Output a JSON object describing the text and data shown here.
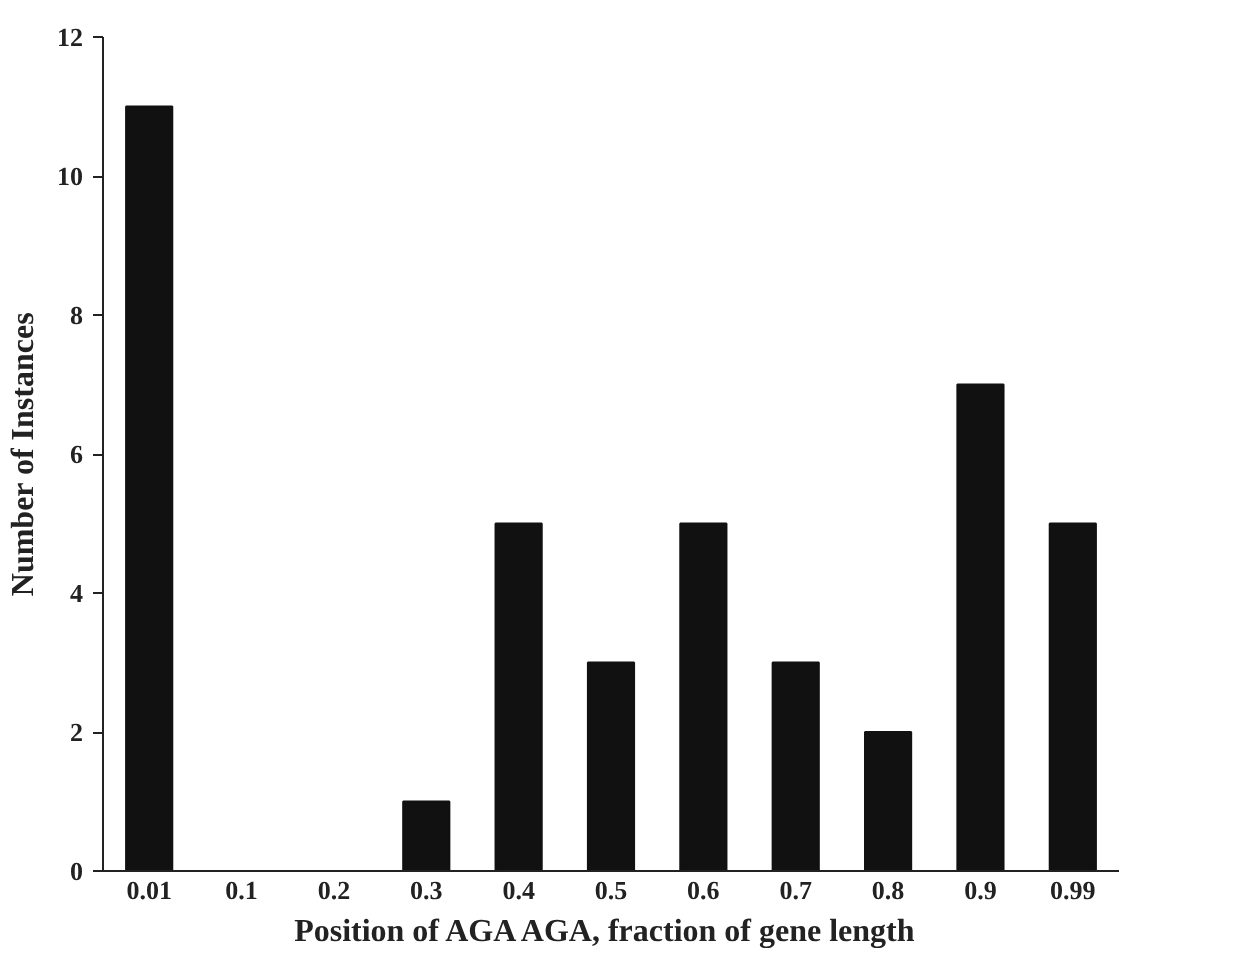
{
  "chart_data": {
    "type": "bar",
    "xlabel": "Position of AGA  AGA, fraction of gene length",
    "ylabel": "Number of Instances",
    "categories": [
      "0.01",
      "0.1",
      "0.2",
      "0.3",
      "0.4",
      "0.5",
      "0.6",
      "0.7",
      "0.8",
      "0.9",
      "0.99"
    ],
    "values": [
      11,
      0,
      0,
      1,
      5,
      3,
      5,
      3,
      2,
      7,
      5
    ],
    "color": "#111111",
    "ylim": [
      0,
      12
    ],
    "yticks": [
      0,
      2,
      4,
      6,
      8,
      10,
      12
    ],
    "grid": false
  }
}
